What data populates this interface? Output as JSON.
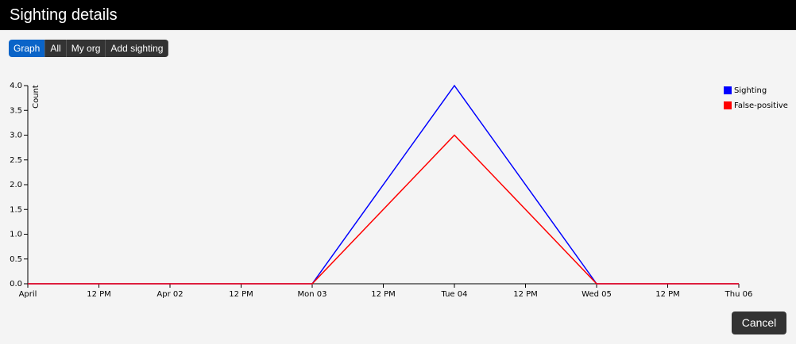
{
  "header": {
    "title": "Sighting details"
  },
  "buttons": [
    "Graph",
    "All",
    "My org",
    "Add sighting"
  ],
  "footer": {
    "cancel": "Cancel"
  },
  "chart_data": {
    "type": "line",
    "ylabel": "Count",
    "x": [
      0,
      24,
      48,
      72,
      96,
      120
    ],
    "xlim": [
      0,
      120
    ],
    "xticks": [
      {
        "value": 0,
        "label": "April"
      },
      {
        "value": 12,
        "label": "12 PM"
      },
      {
        "value": 24,
        "label": "Apr 02"
      },
      {
        "value": 36,
        "label": "12 PM"
      },
      {
        "value": 48,
        "label": "Mon 03"
      },
      {
        "value": 60,
        "label": "12 PM"
      },
      {
        "value": 72,
        "label": "Tue 04"
      },
      {
        "value": 84,
        "label": "12 PM"
      },
      {
        "value": 96,
        "label": "Wed 05"
      },
      {
        "value": 108,
        "label": "12 PM"
      },
      {
        "value": 120,
        "label": "Thu 06"
      }
    ],
    "ylim": [
      0,
      4
    ],
    "yticks": [
      {
        "value": 0,
        "label": "0.0"
      },
      {
        "value": 0.5,
        "label": "0.5"
      },
      {
        "value": 1,
        "label": "1.0"
      },
      {
        "value": 1.5,
        "label": "1.5"
      },
      {
        "value": 2,
        "label": "2.0"
      },
      {
        "value": 2.5,
        "label": "2.5"
      },
      {
        "value": 3,
        "label": "3.0"
      },
      {
        "value": 3.5,
        "label": "3.5"
      },
      {
        "value": 4,
        "label": "4.0"
      }
    ],
    "legend": "top-right",
    "series": [
      {
        "name": "Sighting",
        "color": "#0000ff",
        "values": [
          0,
          0,
          0,
          4,
          0,
          0
        ]
      },
      {
        "name": "False-positive",
        "color": "#ff0000",
        "values": [
          0,
          0,
          0,
          3,
          0,
          0
        ]
      }
    ]
  }
}
